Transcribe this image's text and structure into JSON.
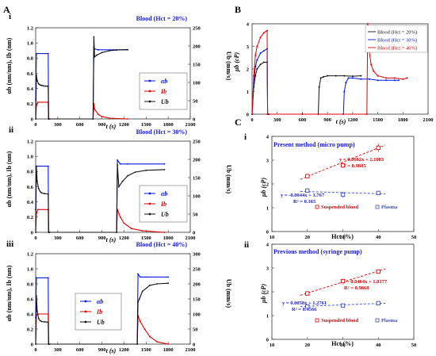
{
  "panel_letters": {
    "A": "A",
    "B": "B",
    "C": "C"
  },
  "chart_data": [
    {
      "id": "A-i",
      "type": "line",
      "roman": "i",
      "title": "Blood (Hct = 20%)",
      "xlabel": "t (s)",
      "ylabel_left": "αb (nm/nm), Ib (nm)",
      "ylabel_right": "Ub (mm/s)",
      "xlim": [
        0,
        2100
      ],
      "ylim_left": [
        0,
        1.2
      ],
      "ylim_right": [
        0,
        250
      ],
      "xticks": [
        "0",
        "300",
        "600",
        "900",
        "1200",
        "1500",
        "1800",
        "2100"
      ],
      "yticks_left": [
        "0",
        "0.2",
        "0.4",
        "0.6",
        "0.8",
        "1.0",
        "1.2"
      ],
      "yticks_right": [
        "0",
        "50",
        "100",
        "150",
        "200",
        "250"
      ],
      "legend": [
        "αb",
        "Ib",
        "Ub"
      ],
      "legend_position": "middle-right",
      "series": [
        {
          "name": "αb",
          "color": "#0018e0",
          "axis": "left",
          "x": [
            0,
            10,
            170,
            175,
            180,
            190,
            780,
            790,
            800,
            850,
            1250
          ],
          "y": [
            0.25,
            0.86,
            0.86,
            0.0,
            0.0,
            0.0,
            0.0,
            0.95,
            0.92,
            0.91,
            0.91
          ]
        },
        {
          "name": "Ib",
          "color": "#e00000",
          "axis": "left",
          "x": [
            0,
            10,
            30,
            170,
            175,
            180,
            780,
            790,
            800,
            850,
            900,
            1000,
            1250
          ],
          "y": [
            0,
            0.18,
            0.22,
            0.22,
            0.0,
            0.0,
            0.0,
            0.2,
            0.13,
            0.06,
            0.03,
            0.01,
            0.0
          ]
        },
        {
          "name": "Ub",
          "color": "#111111",
          "axis": "right",
          "x": [
            0,
            10,
            20,
            40,
            60,
            80,
            100,
            130,
            160,
            170,
            175,
            180,
            780,
            790,
            800,
            830,
            900,
            1000,
            1100,
            1250
          ],
          "y": [
            0,
            120,
            105,
            96,
            93,
            92,
            91,
            90,
            90,
            90,
            0,
            0,
            0,
            225,
            170,
            175,
            182,
            187,
            189,
            190
          ]
        }
      ]
    },
    {
      "id": "A-ii",
      "type": "line",
      "roman": "ii",
      "title": "Blood (Hct = 30%)",
      "xlabel": "t (s)",
      "ylabel_left": "αb (nm/nm), Ib (nm)",
      "ylabel_right": "Ub (mm/s)",
      "xlim": [
        0,
        2100
      ],
      "ylim_left": [
        0,
        1.2
      ],
      "ylim_right": [
        0,
        250
      ],
      "xticks": [
        "0",
        "300",
        "600",
        "900",
        "1200",
        "1500",
        "1800",
        "2100"
      ],
      "yticks_left": [
        "0",
        "0.2",
        "0.4",
        "0.6",
        "0.8",
        "1.0",
        "1.2"
      ],
      "yticks_right": [
        "0",
        "50",
        "100",
        "150",
        "200",
        "250"
      ],
      "legend": [
        "αb",
        "Ib",
        "Ub"
      ],
      "legend_position": "middle-right",
      "series": [
        {
          "name": "αb",
          "color": "#0018e0",
          "axis": "left",
          "x": [
            0,
            10,
            170,
            175,
            180,
            190,
            1100,
            1110,
            1150,
            1250,
            1750
          ],
          "y": [
            0.3,
            0.87,
            0.87,
            0.0,
            0.0,
            0.0,
            0.0,
            0.95,
            0.9,
            0.9,
            0.9
          ]
        },
        {
          "name": "Ib",
          "color": "#e00000",
          "axis": "left",
          "x": [
            0,
            10,
            30,
            170,
            175,
            180,
            1100,
            1110,
            1150,
            1200,
            1300,
            1450,
            1750
          ],
          "y": [
            0,
            0.25,
            0.3,
            0.3,
            0.0,
            0.0,
            0.0,
            0.3,
            0.2,
            0.12,
            0.05,
            0.02,
            0.0
          ]
        },
        {
          "name": "Ub",
          "color": "#111111",
          "axis": "right",
          "x": [
            0,
            10,
            20,
            40,
            60,
            80,
            120,
            170,
            175,
            180,
            1100,
            1110,
            1130,
            1180,
            1250,
            1350,
            1500,
            1750
          ],
          "y": [
            0,
            180,
            140,
            120,
            112,
            108,
            106,
            105,
            0,
            0,
            0,
            185,
            125,
            140,
            155,
            165,
            170,
            172
          ]
        }
      ]
    },
    {
      "id": "A-iii",
      "type": "line",
      "roman": "iii",
      "title": "Blood (Hct = 40%)",
      "xlabel": "t (s)",
      "ylabel_left": "αb (nm/nm), Ib (nm)",
      "ylabel_right": "Ub (mm/s)",
      "xlim": [
        0,
        2100
      ],
      "ylim_left": [
        0,
        1.2
      ],
      "ylim_right": [
        0,
        300
      ],
      "xticks": [
        "0",
        "300",
        "600",
        "900",
        "1200",
        "1500",
        "1800",
        "2100"
      ],
      "yticks_left": [
        "0",
        "0.2",
        "0.4",
        "0.6",
        "0.8",
        "1.0",
        "1.2"
      ],
      "yticks_right": [
        "0",
        "50",
        "100",
        "150",
        "200",
        "250",
        "300"
      ],
      "legend": [
        "αb",
        "Ib",
        "Ub"
      ],
      "legend_position": "middle-left",
      "series": [
        {
          "name": "αb",
          "color": "#0018e0",
          "axis": "left",
          "x": [
            0,
            10,
            170,
            175,
            180,
            190,
            1380,
            1390,
            1420,
            1500,
            1800
          ],
          "y": [
            0.35,
            0.88,
            0.88,
            0.0,
            0.0,
            0.0,
            0.0,
            0.93,
            0.89,
            0.89,
            0.89
          ]
        },
        {
          "name": "Ib",
          "color": "#e00000",
          "axis": "left",
          "x": [
            0,
            10,
            30,
            170,
            175,
            180,
            1380,
            1390,
            1420,
            1480,
            1550,
            1650,
            1800
          ],
          "y": [
            0,
            0.38,
            0.4,
            0.4,
            0.0,
            0.0,
            0.0,
            0.38,
            0.3,
            0.2,
            0.1,
            0.03,
            0.0
          ]
        },
        {
          "name": "Ub",
          "color": "#111111",
          "axis": "right",
          "x": [
            0,
            10,
            20,
            40,
            60,
            80,
            120,
            170,
            175,
            180,
            1380,
            1390,
            1410,
            1450,
            1550,
            1650,
            1800
          ],
          "y": [
            0,
            160,
            110,
            85,
            78,
            75,
            74,
            73,
            0,
            0,
            0,
            140,
            150,
            175,
            195,
            200,
            202
          ]
        }
      ]
    },
    {
      "id": "B",
      "type": "line",
      "xlabel": "t (s)",
      "ylabel": "μb (cP)",
      "xlim": [
        0,
        2100
      ],
      "ylim": [
        0,
        4
      ],
      "xticks": [
        "0",
        "300",
        "600",
        "900",
        "1200",
        "1500",
        "1800",
        "2100"
      ],
      "yticks": [
        "0",
        "1",
        "2",
        "3",
        "4"
      ],
      "legend": [
        "Blood (Hct = 20%)",
        "Blood (Hct = 30%)",
        "Blood (Hct = 40%)"
      ],
      "legend_position": "top-right",
      "series": [
        {
          "name": "Blood (Hct = 20%)",
          "color": "#111111",
          "x": [
            0,
            20,
            40,
            60,
            100,
            140,
            180,
            185,
            200,
            600,
            790,
            800,
            820,
            850,
            900,
            1000,
            1100,
            1200,
            1300
          ],
          "y": [
            0,
            1.2,
            1.7,
            2.0,
            2.2,
            2.3,
            2.3,
            0,
            0,
            0,
            0,
            1.2,
            1.6,
            1.65,
            1.7,
            1.7,
            1.7,
            1.68,
            1.7
          ]
        },
        {
          "name": "Blood (Hct = 30%)",
          "color": "#0018e0",
          "x": [
            0,
            20,
            40,
            60,
            100,
            140,
            180,
            185,
            200,
            1090,
            1100,
            1120,
            1150,
            1200,
            1300,
            1400,
            1500,
            1600,
            1700,
            1750
          ],
          "y": [
            0,
            1.4,
            2.1,
            2.4,
            2.7,
            2.8,
            2.9,
            0,
            0,
            0,
            1.0,
            1.4,
            1.6,
            1.6,
            1.55,
            1.55,
            1.5,
            1.5,
            1.5,
            1.5
          ]
        },
        {
          "name": "Blood (Hct = 40%)",
          "color": "#e00000",
          "x": [
            0,
            20,
            40,
            60,
            100,
            140,
            180,
            185,
            200,
            1370,
            1380,
            1390,
            1420,
            1450,
            1500,
            1600,
            1700,
            1800,
            1850
          ],
          "y": [
            0,
            1.7,
            2.6,
            3.0,
            3.4,
            3.6,
            3.7,
            0,
            0,
            0,
            4.0,
            3.0,
            2.2,
            1.9,
            1.7,
            1.6,
            1.6,
            1.55,
            1.6
          ]
        }
      ]
    },
    {
      "id": "C-i",
      "type": "scatter",
      "roman": "i",
      "title": "Present method (micro pump)",
      "xlabel": "Hct (%)",
      "ylabel": "μb (cP)",
      "xlim": [
        10,
        50
      ],
      "ylim": [
        0,
        4
      ],
      "xticks": [
        "10",
        "20",
        "30",
        "40",
        "50"
      ],
      "yticks": [
        "0",
        "1",
        "2",
        "3",
        "4"
      ],
      "legend": [
        "Suspended blood",
        "Plasma"
      ],
      "legend_position": "bottom-right",
      "series": [
        {
          "name": "Suspended blood",
          "color": "#e00000",
          "x": [
            20,
            30,
            40
          ],
          "y": [
            2.33,
            2.78,
            3.52
          ],
          "err": [
            0.08,
            0.1,
            0.18
          ]
        },
        {
          "name": "Plasma",
          "color": "#3a4bd0",
          "x": [
            20,
            30,
            40
          ],
          "y": [
            1.72,
            1.55,
            1.62
          ],
          "err": [
            0.06,
            0.12,
            0.08
          ]
        }
      ],
      "annotations": {
        "red_eq": "y = 0.0602x + 1.1083",
        "red_r2": "R² = 0.9885",
        "blue_eq": "y = -0.0044x + 1.767",
        "blue_r2": "R² = 0.165"
      }
    },
    {
      "id": "C-ii",
      "type": "scatter",
      "roman": "ii",
      "title": "Previous method (syringe pump)",
      "xlabel": "Hct (%)",
      "ylabel": "μb (cP)",
      "xlim": [
        10,
        50
      ],
      "ylim": [
        0,
        4
      ],
      "xticks": [
        "10",
        "20",
        "30",
        "40",
        "50"
      ],
      "yticks": [
        "0",
        "1",
        "2",
        "3",
        "4"
      ],
      "legend": [
        "Suspended blood",
        "Plasma"
      ],
      "legend_position": "bottom-right",
      "series": [
        {
          "name": "Suspended blood",
          "color": "#e00000",
          "x": [
            20,
            30,
            40
          ],
          "y": [
            1.93,
            2.45,
            2.85
          ],
          "err": [
            0.05,
            0.06,
            0.07
          ]
        },
        {
          "name": "Plasma",
          "color": "#3a4bd0",
          "x": [
            20,
            30,
            40
          ],
          "y": [
            1.38,
            1.42,
            1.52
          ],
          "err": [
            0.04,
            0.04,
            0.05
          ]
        }
      ],
      "annotations": {
        "red_eq": "y = 0.0464x + 1.0177",
        "red_r2": "R² = 0.9868",
        "blue_eq": "y = 0.0058x + 1.2761",
        "blue_r2": "R² = 0.4566"
      }
    }
  ]
}
